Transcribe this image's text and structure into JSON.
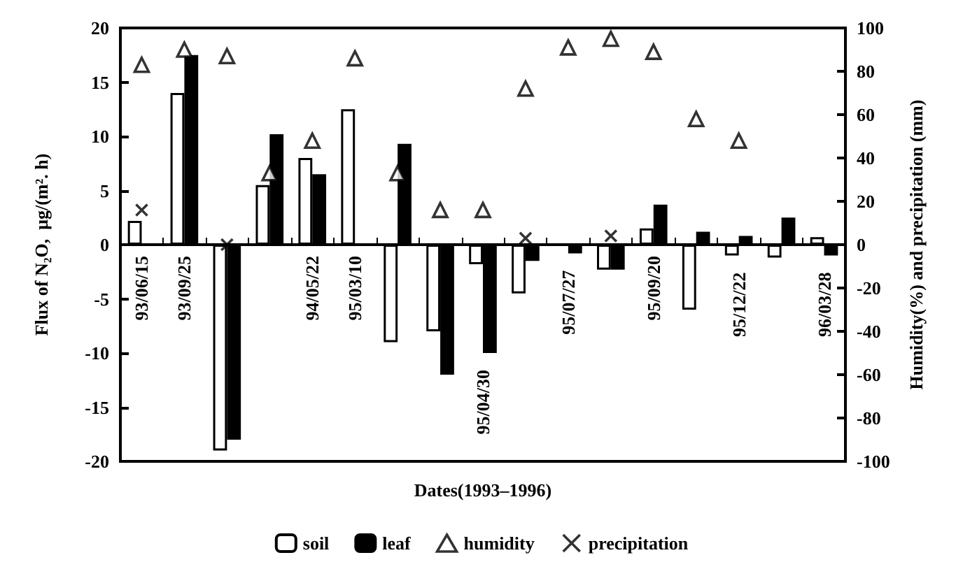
{
  "chart_data": {
    "type": "bar",
    "xlabel": "Dates(1993–1996)",
    "ylabel": "Flux of N₂O,  μg/(m². h)",
    "y2label": "Humidity(%) and precipitation (mm)",
    "categories": [
      "93/06/15",
      "93/09/25",
      null,
      null,
      "94/05/22",
      "95/03/10",
      null,
      null,
      "95/04/30",
      null,
      "95/07/27",
      null,
      "95/09/20",
      null,
      "95/12/22",
      null,
      "96/03/28"
    ],
    "series": [
      {
        "name": "soil",
        "color": "#ffffff",
        "values": [
          2.2,
          14,
          -19,
          5.5,
          8,
          12.5,
          -9,
          -8,
          -1.8,
          -4.5,
          null,
          -2.3,
          1.5,
          -6,
          -1,
          -1.2,
          0.7
        ]
      },
      {
        "name": "leaf",
        "color": "#000000",
        "values": [
          null,
          17.5,
          -18,
          10.2,
          6.5,
          null,
          9.3,
          -12,
          -10,
          -1.5,
          -0.8,
          -2.3,
          3.7,
          1.2,
          0.8,
          2.5,
          -1
        ]
      },
      {
        "name": "humidity",
        "type": "scatter",
        "axis": "y2",
        "marker": "triangle",
        "color": "#000000",
        "values": [
          83,
          90,
          87,
          33,
          48,
          86,
          33,
          16,
          16,
          72,
          91,
          95,
          89,
          58,
          48,
          null,
          null
        ]
      },
      {
        "name": "precipitation",
        "type": "scatter",
        "axis": "y2",
        "marker": "cross",
        "color": "#000000",
        "values": [
          16,
          null,
          0,
          null,
          null,
          null,
          null,
          null,
          null,
          3,
          null,
          4,
          null,
          null,
          null,
          null,
          null
        ]
      }
    ],
    "ylim": [
      -20,
      20
    ],
    "yticks": [
      -20,
      -15,
      -10,
      -5,
      0,
      5,
      10,
      15,
      20
    ],
    "y2lim": [
      -100,
      100
    ],
    "y2ticks": [
      -100,
      -80,
      -60,
      -40,
      -20,
      0,
      20,
      40,
      60,
      80,
      100
    ],
    "grid": false,
    "legend": "bottom"
  }
}
